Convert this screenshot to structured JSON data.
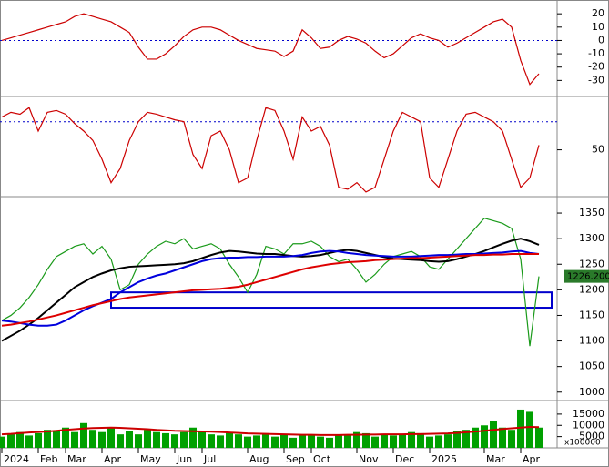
{
  "chart_data": [
    {
      "type": "line",
      "ylim": [
        -40,
        29
      ],
      "yticks": [
        20,
        10,
        0,
        -10,
        -20,
        -30
      ],
      "reference_lines": [
        0
      ],
      "series": [
        {
          "color": "#cc0000",
          "values": [
            0,
            2,
            4,
            6,
            8,
            10,
            12,
            14,
            18,
            20,
            18,
            16,
            14,
            10,
            6,
            -5,
            -14,
            -14,
            -10,
            -4,
            3,
            8,
            10,
            10,
            8,
            4,
            0,
            -3,
            -6,
            -7,
            -8,
            -12,
            -8,
            8,
            2,
            -6,
            -5,
            0,
            3,
            1,
            -2,
            -8,
            -13,
            -10,
            -4,
            2,
            5,
            2,
            0,
            -5,
            -2,
            2,
            6,
            10,
            14,
            16,
            10,
            -15,
            -33,
            -25
          ]
        }
      ]
    },
    {
      "type": "line",
      "ylim": [
        3,
        103
      ],
      "yticks": [
        50
      ],
      "reference_lines": [
        20,
        80
      ],
      "series": [
        {
          "color": "#cc0000",
          "values": [
            85,
            90,
            88,
            95,
            70,
            90,
            92,
            88,
            78,
            70,
            60,
            40,
            15,
            30,
            60,
            80,
            90,
            88,
            85,
            82,
            80,
            45,
            30,
            65,
            70,
            50,
            15,
            20,
            60,
            95,
            92,
            70,
            40,
            85,
            70,
            75,
            55,
            10,
            8,
            15,
            5,
            10,
            40,
            70,
            90,
            85,
            80,
            20,
            10,
            40,
            70,
            88,
            90,
            85,
            80,
            70,
            40,
            10,
            20,
            55
          ]
        }
      ]
    },
    {
      "type": "line",
      "ylim": [
        980,
        1375
      ],
      "yticks": [
        1350,
        1300,
        1250,
        1200,
        1150,
        1100,
        1050,
        1000
      ],
      "zone": [
        1165,
        1195
      ],
      "last_value_label": "1226.200",
      "series": [
        {
          "color": "#1a9a1a",
          "values": [
            1140,
            1150,
            1165,
            1185,
            1210,
            1240,
            1265,
            1275,
            1285,
            1290,
            1270,
            1285,
            1260,
            1200,
            1210,
            1250,
            1270,
            1285,
            1295,
            1290,
            1300,
            1280,
            1285,
            1290,
            1280,
            1250,
            1225,
            1195,
            1230,
            1285,
            1280,
            1270,
            1290,
            1290,
            1295,
            1285,
            1265,
            1255,
            1260,
            1240,
            1215,
            1230,
            1250,
            1265,
            1270,
            1275,
            1265,
            1245,
            1240,
            1260,
            1280,
            1300,
            1320,
            1340,
            1335,
            1330,
            1320,
            1260,
            1090,
            1226.2
          ]
        },
        {
          "color": "#000000",
          "values": [
            1100,
            1110,
            1120,
            1132,
            1145,
            1160,
            1175,
            1190,
            1205,
            1215,
            1225,
            1232,
            1238,
            1242,
            1245,
            1246,
            1247,
            1248,
            1249,
            1250,
            1252,
            1256,
            1262,
            1268,
            1273,
            1276,
            1275,
            1273,
            1271,
            1270,
            1270,
            1268,
            1266,
            1265,
            1266,
            1268,
            1272,
            1276,
            1278,
            1276,
            1272,
            1268,
            1264,
            1261,
            1260,
            1259,
            1258,
            1256,
            1255,
            1256,
            1260,
            1265,
            1270,
            1276,
            1283,
            1290,
            1296,
            1300,
            1295,
            1288
          ]
        },
        {
          "color": "#0000dd",
          "values": [
            1140,
            1138,
            1135,
            1132,
            1130,
            1130,
            1132,
            1140,
            1150,
            1160,
            1168,
            1175,
            1182,
            1195,
            1205,
            1215,
            1222,
            1228,
            1232,
            1238,
            1244,
            1250,
            1256,
            1260,
            1262,
            1263,
            1263,
            1264,
            1264,
            1265,
            1265,
            1265,
            1266,
            1268,
            1272,
            1275,
            1276,
            1275,
            1272,
            1270,
            1268,
            1267,
            1266,
            1265,
            1265,
            1265,
            1266,
            1267,
            1268,
            1268,
            1269,
            1270,
            1270,
            1271,
            1272,
            1273,
            1275,
            1276,
            1272,
            1270
          ]
        },
        {
          "color": "#dd0000",
          "values": [
            1130,
            1132,
            1135,
            1138,
            1142,
            1146,
            1150,
            1155,
            1160,
            1165,
            1170,
            1174,
            1178,
            1182,
            1185,
            1187,
            1189,
            1191,
            1193,
            1195,
            1197,
            1199,
            1200,
            1201,
            1202,
            1204,
            1206,
            1210,
            1215,
            1220,
            1225,
            1230,
            1235,
            1240,
            1244,
            1247,
            1250,
            1252,
            1254,
            1255,
            1256,
            1258,
            1259,
            1260,
            1261,
            1262,
            1262,
            1263,
            1264,
            1265,
            1266,
            1267,
            1268,
            1268,
            1269,
            1269,
            1270,
            1270,
            1270,
            1270
          ]
        }
      ]
    },
    {
      "type": "bar",
      "ylim": [
        0,
        19000
      ],
      "yticks": [
        15000,
        10000,
        5000
      ],
      "unit_label": "x100000",
      "color": "#00a000",
      "categories": [
        "2024",
        null,
        null,
        null,
        "Feb",
        null,
        null,
        "Mar",
        null,
        null,
        null,
        "Apr",
        null,
        null,
        null,
        "May",
        null,
        null,
        null,
        "Jun",
        null,
        null,
        "Jul",
        null,
        null,
        null,
        null,
        "Aug",
        null,
        null,
        null,
        "Sep",
        null,
        null,
        "Oct",
        null,
        null,
        null,
        null,
        "Nov",
        null,
        null,
        null,
        "Dec",
        null,
        null,
        null,
        "2025",
        null,
        null,
        null,
        null,
        null,
        "Mar",
        null,
        null,
        null,
        "Apr",
        null,
        null
      ],
      "values": [
        5000,
        6000,
        7000,
        5500,
        6500,
        8000,
        7500,
        9000,
        7000,
        11000,
        8000,
        7000,
        9000,
        6000,
        7500,
        6000,
        8000,
        7000,
        6500,
        6000,
        7000,
        9000,
        7500,
        6000,
        5500,
        7000,
        6000,
        5000,
        5500,
        6500,
        5000,
        6000,
        4500,
        5500,
        6000,
        5000,
        4500,
        5500,
        6000,
        7000,
        6500,
        5000,
        6000,
        5500,
        6000,
        7000,
        6500,
        5000,
        5500,
        6000,
        7500,
        8000,
        9000,
        10000,
        12000,
        9000,
        8000,
        17000,
        16000,
        9000
      ],
      "ma": {
        "color": "#cc0000",
        "values": [
          6000,
          6200,
          6500,
          6800,
          7000,
          7300,
          7600,
          8000,
          8300,
          8600,
          8800,
          8900,
          9000,
          8900,
          8700,
          8500,
          8300,
          8000,
          7800,
          7600,
          7500,
          7400,
          7300,
          7200,
          7000,
          6800,
          6600,
          6400,
          6300,
          6200,
          6100,
          6000,
          5900,
          5800,
          5800,
          5700,
          5700,
          5700,
          5800,
          5800,
          5900,
          5900,
          6000,
          6000,
          6000,
          6100,
          6100,
          6200,
          6300,
          6400,
          6600,
          6900,
          7200,
          7600,
          8000,
          8400,
          8700,
          9000,
          9300,
          9200
        ]
      }
    }
  ]
}
